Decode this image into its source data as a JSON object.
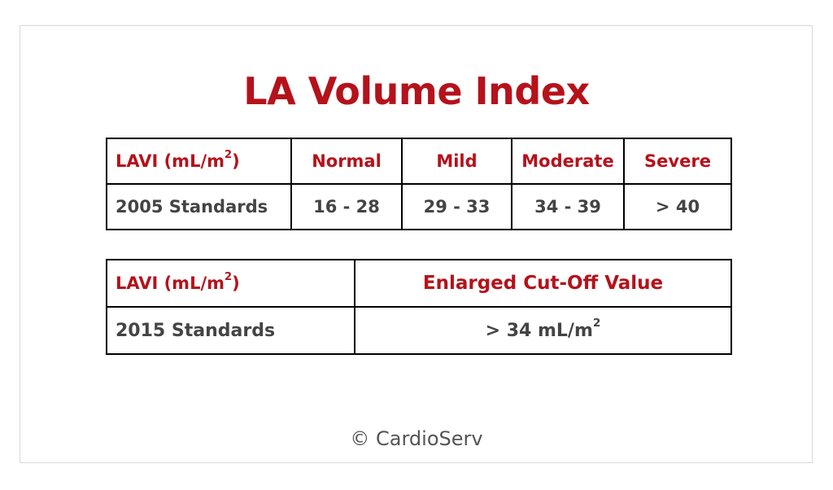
{
  "title": "LA Volume Index",
  "unit_superscript": "2",
  "table_2005": {
    "header_label": "LAVI (mL/m",
    "header_close": ")",
    "columns": [
      "Normal",
      "Mild",
      "Moderate",
      "Severe"
    ],
    "row_label": "2005 Standards",
    "values": [
      "16 - 28",
      "29 - 33",
      "34 - 39",
      "> 40"
    ]
  },
  "table_2015": {
    "header_label": "LAVI (mL/m",
    "header_close": ")",
    "column": "Enlarged Cut-Off Value",
    "row_label": "2015 Standards",
    "value": "> 34 mL/m"
  },
  "footer": "© CardioServ",
  "colors": {
    "accent": "#b5121b",
    "text": "#444444",
    "border": "#000000",
    "card_border": "#d9d9d9"
  }
}
